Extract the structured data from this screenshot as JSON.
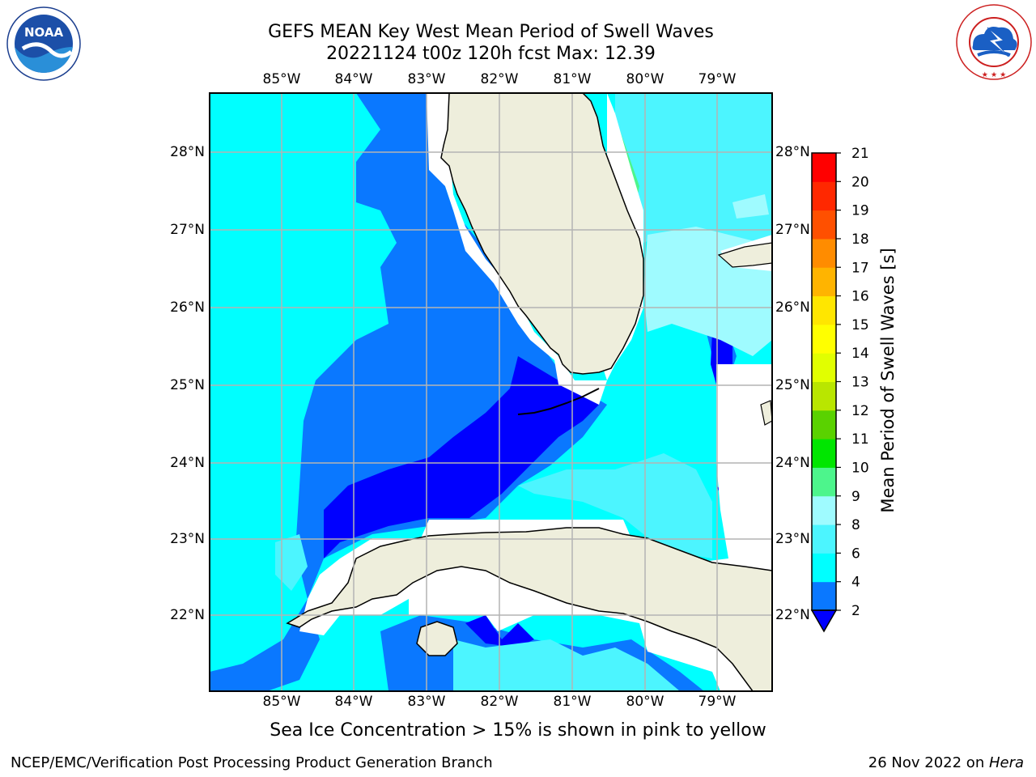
{
  "title_line1": "GEFS MEAN Key West Mean Period of Swell Waves",
  "title_line2": "20221124 t00z 120h fcst   Max: 12.39",
  "longitude_labels": [
    "85°W",
    "84°W",
    "83°W",
    "82°W",
    "81°W",
    "80°W",
    "79°W"
  ],
  "latitude_labels": [
    "28°N",
    "27°N",
    "26°N",
    "25°N",
    "24°N",
    "23°N",
    "22°N"
  ],
  "colorbar": {
    "label": "Mean Period of Swell Waves [s]",
    "ticks": [
      "2",
      "4",
      "6",
      "8",
      "9",
      "10",
      "11",
      "12",
      "13",
      "14",
      "15",
      "16",
      "17",
      "18",
      "19",
      "20",
      "21"
    ],
    "colors": [
      "#0000ff",
      "#0a78ff",
      "#00ffff",
      "#4cf5ff",
      "#9ffbff",
      "#4df58c",
      "#00e600",
      "#5ad200",
      "#b9e600",
      "#e1ff00",
      "#ffff00",
      "#ffe600",
      "#ffb400",
      "#ff8c00",
      "#ff5000",
      "#ff2800",
      "#ff0000"
    ]
  },
  "footnote": "Sea Ice Concentration > 15% is shown in pink to yellow",
  "credit": "NCEP/EMC/Verification Post Processing Product Generation Branch",
  "date_text": "26 Nov 2022 on ",
  "date_host": "Hera",
  "noaa_logo_text": "NOAA",
  "nws_logo_text": "NATIONAL WEATHER SERVICE"
}
